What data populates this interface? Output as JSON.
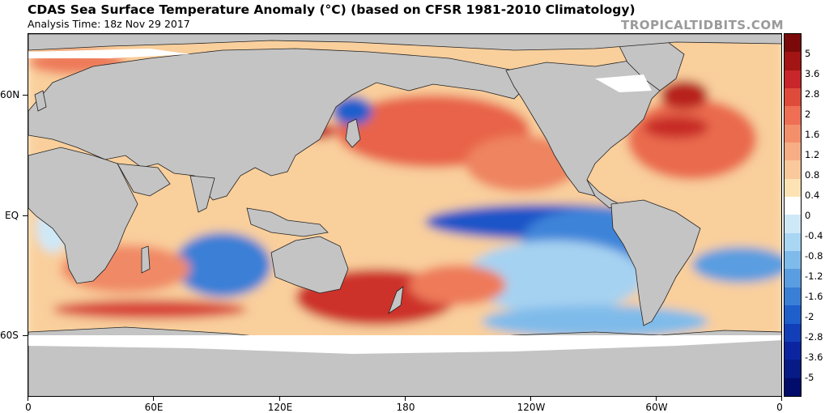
{
  "header": {
    "title": "CDAS Sea Surface Temperature Anomaly (°C) (based on CFSR 1981-2010 Climatology)",
    "subtitle": "Analysis Time: 18z Nov 29 2017",
    "brand": "TROPICALTIDBITS.COM"
  },
  "axes": {
    "x_labels": [
      "0",
      "60E",
      "120E",
      "180",
      "120W",
      "60W",
      "0"
    ],
    "y_labels": [
      "60N",
      "EQ",
      "60S"
    ]
  },
  "colorbar": {
    "labels": [
      "5",
      "3.6",
      "2.8",
      "2",
      "1.6",
      "1.2",
      "0.8",
      "0.4",
      "0",
      "-0.4",
      "-0.8",
      "-1.2",
      "-1.6",
      "-2",
      "-2.8",
      "-3.6",
      "-5"
    ],
    "colors": [
      "#7a0a0a",
      "#a31414",
      "#c8262a",
      "#de4b3a",
      "#ee6f54",
      "#f48f6c",
      "#f7ae84",
      "#fac99b",
      "#fde3b4",
      "#ffffff",
      "#cfe8f7",
      "#a9d6f3",
      "#7fbbea",
      "#5a9de0",
      "#3a7fd6",
      "#1f5fcc",
      "#123fb7",
      "#0b25a0",
      "#071b86",
      "#020c6a"
    ]
  },
  "colors": {
    "land": "#c4c4c4",
    "ice": "#ffffff",
    "coast": "#222222",
    "neutral_ocean": "#fbe9c6"
  }
}
